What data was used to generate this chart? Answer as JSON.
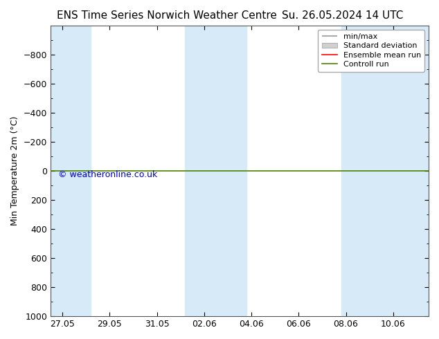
{
  "title_left": "ENS Time Series Norwich Weather Centre",
  "title_right": "Su. 26.05.2024 14 UTC",
  "ylabel": "Min Temperature 2m (°C)",
  "ylim_top": -1000,
  "ylim_bottom": 1000,
  "yticks": [
    -800,
    -600,
    -400,
    -200,
    0,
    200,
    400,
    600,
    800,
    1000
  ],
  "xtick_labels": [
    "27.05",
    "29.05",
    "31.05",
    "02.06",
    "04.06",
    "06.06",
    "08.06",
    "10.06"
  ],
  "xtick_days": [
    0,
    2,
    4,
    6,
    8,
    10,
    12,
    14
  ],
  "xlim": [
    -0.5,
    15.5
  ],
  "shade_ranges": [
    [
      -0.5,
      1.2
    ],
    [
      5.2,
      7.8
    ],
    [
      11.8,
      15.5
    ]
  ],
  "green_line_y": 0,
  "background_color": "#ffffff",
  "plot_bg_color": "#ffffff",
  "shade_color": "#d6eaf8",
  "green_line_color": "#4d8000",
  "red_line_color": "#ff0000",
  "copyright_text": "© weatheronline.co.uk",
  "copyright_color": "#0000cc",
  "title_fontsize": 11,
  "axis_fontsize": 9,
  "tick_fontsize": 9,
  "legend_fontsize": 8
}
